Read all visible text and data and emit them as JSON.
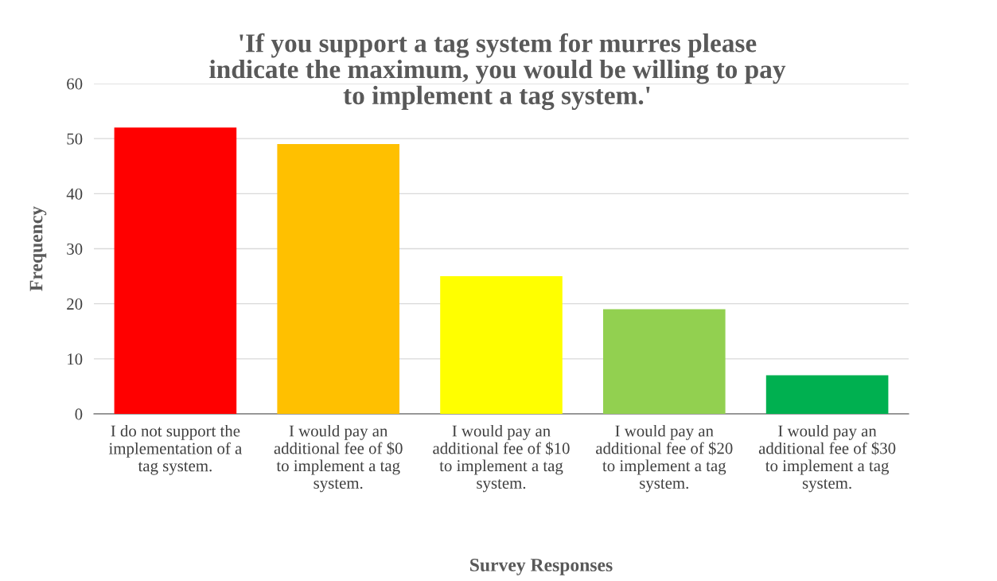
{
  "chart_data": {
    "type": "bar",
    "title": "'If you support a tag system for murres please indicate the maximum, you would be willing to pay to implement a tag system.'",
    "xlabel": "Survey Responses",
    "ylabel": "Frequency",
    "categories": [
      "I do not support the implementation of a tag system.",
      "I would pay an additional fee of $0 to implement a tag system.",
      "I would pay an additional fee of $10 to implement a tag system.",
      "I would pay an additional fee of $20 to implement a tag system.",
      "I would pay an additional fee of $30 to implement a tag system."
    ],
    "values": [
      52,
      49,
      25,
      19,
      7
    ],
    "colors": [
      "#ff0000",
      "#ffc000",
      "#ffff00",
      "#92d050",
      "#00b050"
    ],
    "ylim": [
      0,
      60
    ],
    "yticks": [
      0,
      10,
      20,
      30,
      40,
      50,
      60
    ],
    "grid": "y",
    "legend": false
  }
}
